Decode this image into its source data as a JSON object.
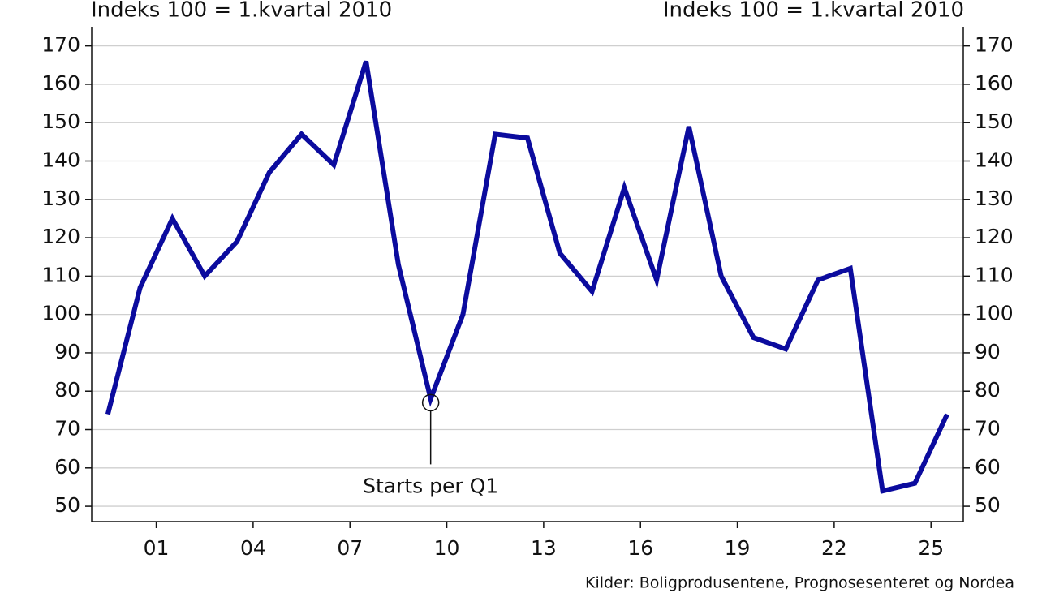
{
  "chart_data": {
    "type": "line",
    "y_label": "Indeks 100 = 1.kvartal 2010",
    "y2_label": "Indeks 100 = 1.kvartal 2010",
    "source": "Kilder: Boligprodusentene, Prognosesenteret og Nordea",
    "x": [
      1999.5,
      2000.5,
      2001.5,
      2002.5,
      2003.5,
      2004.5,
      2005.5,
      2006.5,
      2007.5,
      2008.5,
      2009.5,
      2010.5,
      2011.5,
      2012.5,
      2013.5,
      2014.5,
      2015.5,
      2016.5,
      2017.5,
      2018.5,
      2019.5,
      2020.5,
      2021.5,
      2022.5,
      2023.5,
      2024.5,
      2025.5
    ],
    "series": [
      {
        "color": "#0b0b9e",
        "values": [
          74,
          107,
          125,
          110,
          119,
          137,
          147,
          139,
          166,
          113,
          78,
          100,
          147,
          146,
          116,
          106,
          133,
          109,
          149,
          110,
          94,
          91,
          109,
          112,
          54,
          56,
          74
        ]
      }
    ],
    "xlim": [
      1999,
      2026
    ],
    "xticks": [
      {
        "value": 2001,
        "label": "01"
      },
      {
        "value": 2004,
        "label": "04"
      },
      {
        "value": 2007,
        "label": "07"
      },
      {
        "value": 2010,
        "label": "10"
      },
      {
        "value": 2013,
        "label": "13"
      },
      {
        "value": 2016,
        "label": "16"
      },
      {
        "value": 2019,
        "label": "19"
      },
      {
        "value": 2022,
        "label": "22"
      },
      {
        "value": 2025,
        "label": "25"
      }
    ],
    "ylim": [
      46,
      175
    ],
    "yticks": [
      50,
      60,
      70,
      80,
      90,
      100,
      110,
      120,
      130,
      140,
      150,
      160,
      170
    ],
    "y2lim": [
      46,
      175
    ],
    "y2ticks": [
      50,
      60,
      70,
      80,
      90,
      100,
      110,
      120,
      130,
      140,
      150,
      160,
      170
    ],
    "grid": true,
    "annotation": {
      "text": "Starts per Q1",
      "x": 2009.5,
      "y": 77
    }
  }
}
